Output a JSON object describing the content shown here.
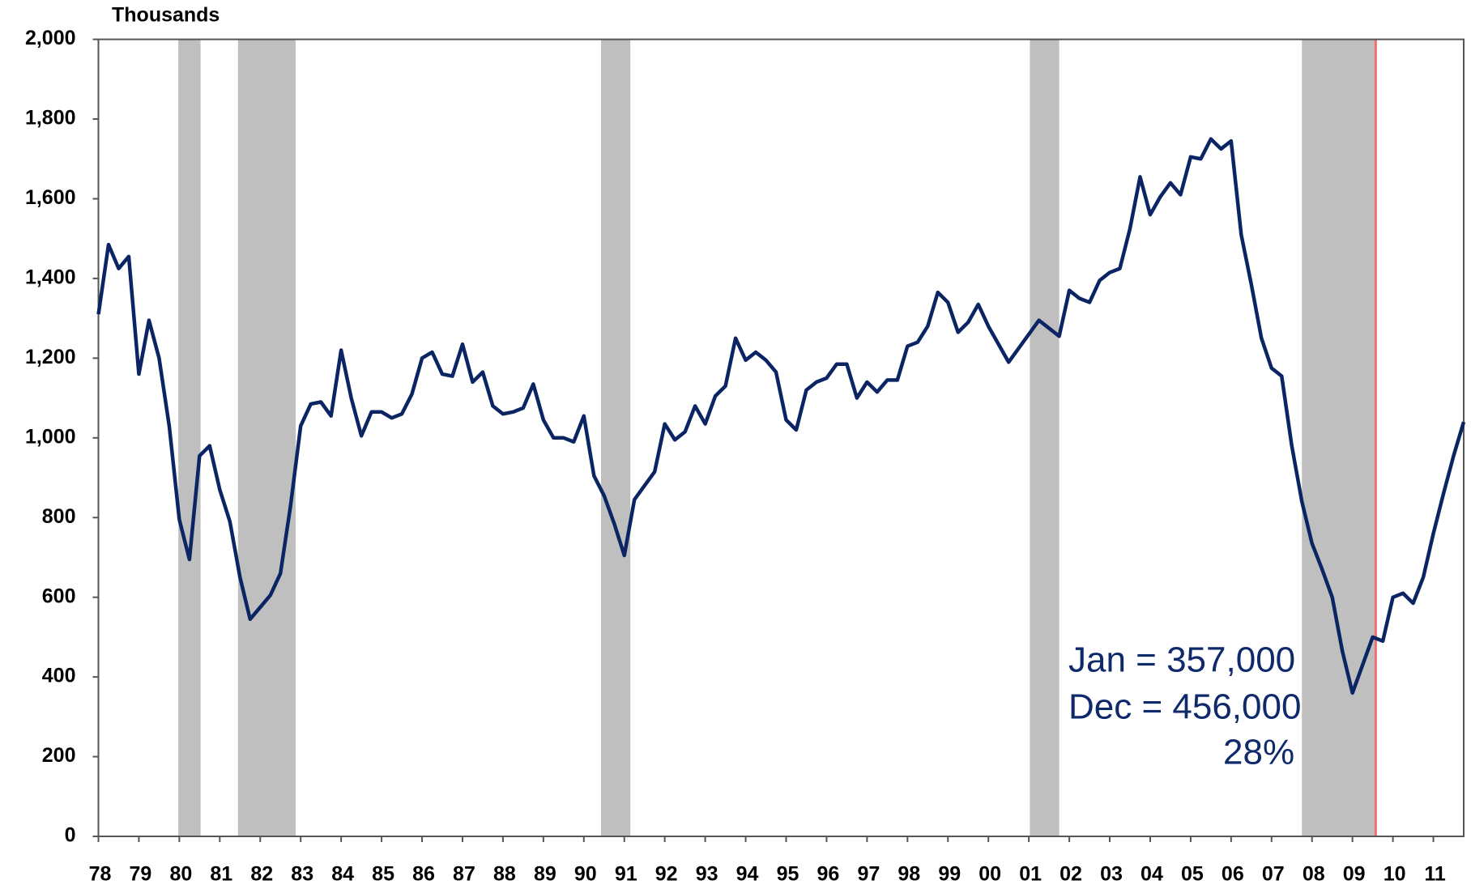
{
  "chart_data": {
    "type": "line",
    "y_axis_label": "Thousands",
    "categories": [
      "78",
      null,
      null,
      null,
      "79",
      null,
      null,
      null,
      "80",
      null,
      null,
      null,
      "81",
      null,
      null,
      null,
      "82",
      null,
      null,
      null,
      "83",
      null,
      null,
      null,
      "84",
      null,
      null,
      null,
      "85",
      null,
      null,
      null,
      "86",
      null,
      null,
      null,
      "87",
      null,
      null,
      null,
      "88",
      null,
      null,
      null,
      "89",
      null,
      null,
      null,
      "90",
      null,
      null,
      null,
      "91",
      null,
      null,
      null,
      "92",
      null,
      null,
      null,
      "93",
      null,
      null,
      null,
      "94",
      null,
      null,
      null,
      "95",
      null,
      null,
      null,
      "96",
      null,
      null,
      null,
      "97",
      null,
      null,
      null,
      "98",
      null,
      null,
      null,
      "99",
      null,
      null,
      null,
      "00",
      null,
      null,
      null,
      "01",
      null,
      null,
      null,
      "02",
      null,
      null,
      null,
      "03",
      null,
      null,
      null,
      "04",
      null,
      null,
      null,
      "05",
      null,
      null,
      null,
      "06",
      null,
      null,
      null,
      "07",
      null,
      null,
      null,
      "08",
      null,
      null,
      null,
      "09",
      null,
      null,
      null,
      "10",
      null,
      null,
      null,
      "11",
      null,
      null,
      null
    ],
    "series": [
      {
        "name": "Thousands",
        "color": "#0b2463",
        "values": [
          1310,
          1485,
          1425,
          1455,
          1160,
          1295,
          1200,
          1030,
          795,
          695,
          955,
          980,
          870,
          790,
          650,
          545,
          575,
          605,
          660,
          830,
          1030,
          1085,
          1090,
          1055,
          1220,
          1100,
          1005,
          1065,
          1065,
          1050,
          1060,
          1110,
          1200,
          1215,
          1160,
          1155,
          1235,
          1140,
          1165,
          1080,
          1060,
          1065,
          1075,
          1135,
          1045,
          1000,
          1000,
          990,
          1055,
          905,
          855,
          785,
          705,
          845,
          880,
          915,
          1035,
          995,
          1015,
          1080,
          1035,
          1105,
          1130,
          1250,
          1195,
          1215,
          1195,
          1165,
          1045,
          1020,
          1120,
          1140,
          1150,
          1185,
          1185,
          1100,
          1140,
          1115,
          1145,
          1145,
          1230,
          1240,
          1280,
          1365,
          1340,
          1265,
          1290,
          1335,
          1280,
          1235,
          1190,
          1225,
          1260,
          1295,
          1275,
          1255,
          1370,
          1350,
          1340,
          1395,
          1415,
          1425,
          1525,
          1655,
          1560,
          1605,
          1640,
          1610,
          1705,
          1700,
          1750,
          1725,
          1745,
          1510,
          1385,
          1250,
          1175,
          1155,
          980,
          840,
          735,
          670,
          600,
          465,
          360,
          430,
          500,
          490,
          600,
          610,
          585,
          650,
          760,
          860,
          955,
          1040
        ]
      }
    ],
    "ylim": [
      0,
      2000
    ],
    "yticks": [
      0,
      200,
      400,
      600,
      800,
      {
        "value": 1000,
        "label": "1,000"
      },
      {
        "value": 1200,
        "label": "1,200"
      },
      {
        "value": 1400,
        "label": "1,400"
      },
      {
        "value": 1600,
        "label": "1,600"
      },
      {
        "value": 1800,
        "label": "1,800"
      },
      {
        "value": 2000,
        "label": "2,000"
      }
    ],
    "grid": false,
    "recessions": [
      [
        7.9,
        10.1
      ],
      [
        13.8,
        19.5
      ],
      [
        49.7,
        52.6
      ],
      [
        92.1,
        95
      ],
      [
        119,
        126.3
      ]
    ],
    "recession_color": "#bfbfbf",
    "marker_line": {
      "x": 126.3,
      "color": "#f07070"
    },
    "annotations": [
      "Jan = 357,000",
      "Dec = 456,000",
      "28%"
    ]
  }
}
